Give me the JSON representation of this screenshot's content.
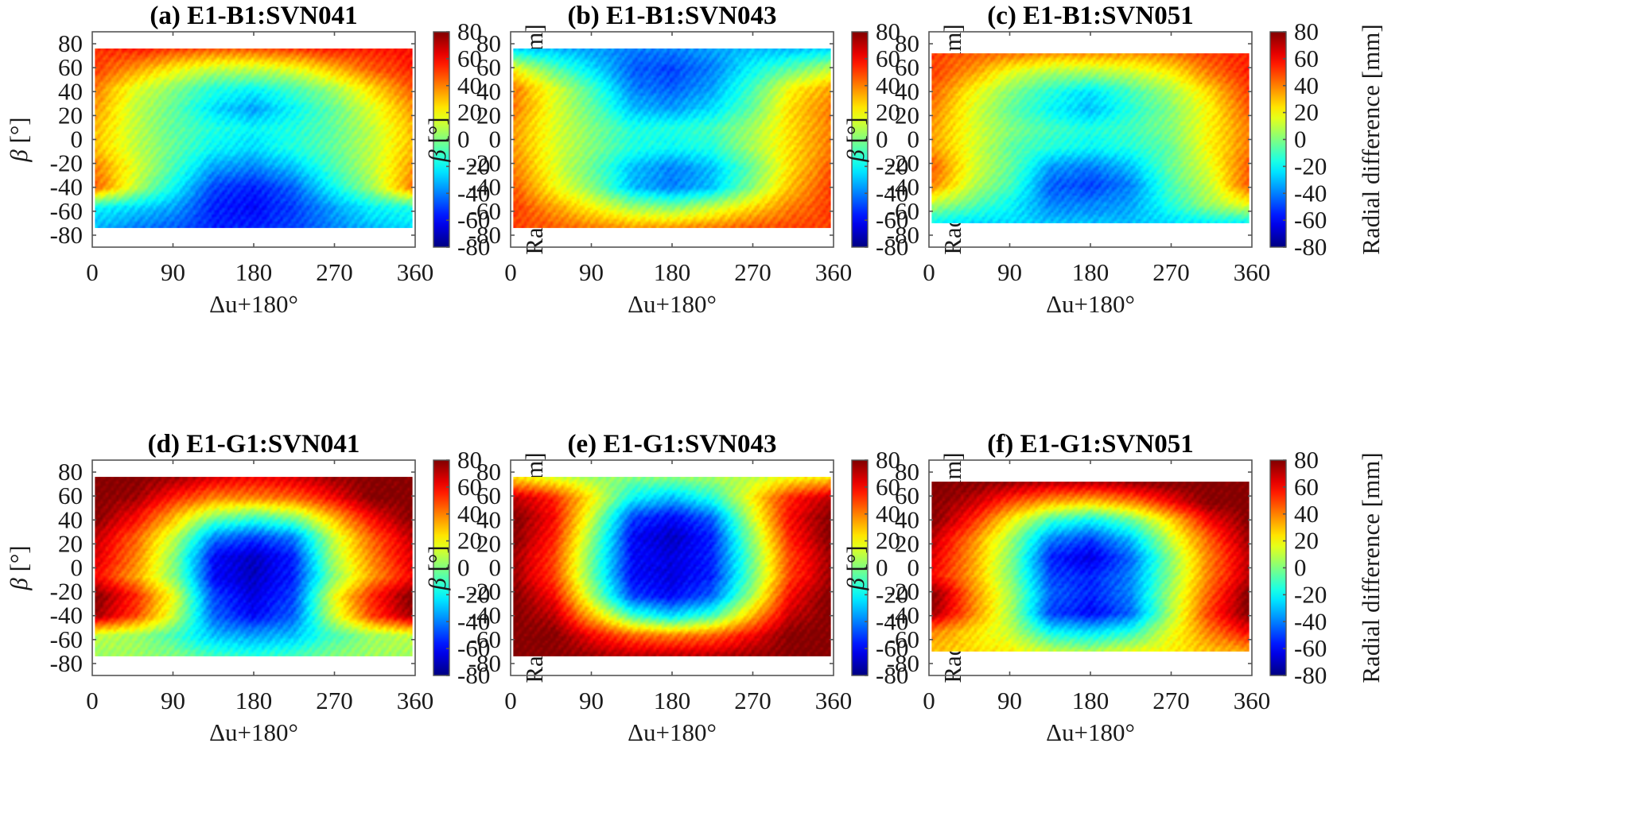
{
  "figure": {
    "description": "Maps of radial orbit differences versus sun elevation angle beta and argument of latitude offset"
  },
  "chart_data": {
    "type": "heatmap",
    "layout": "2 rows x 3 columns, each panel with its own colorbar on the right",
    "shared": {
      "xlabel": "Δu+180°",
      "ylabel": "β [°]",
      "xlim": [
        0,
        360
      ],
      "ylim": [
        -90,
        90
      ],
      "xticks": [
        0,
        90,
        180,
        270,
        360
      ],
      "yticks": [
        -80,
        -60,
        -40,
        -20,
        0,
        20,
        40,
        60,
        80
      ],
      "colorbar_label": "Radial difference [mm]",
      "clim": [
        -80,
        80
      ],
      "colorbar_ticks": [
        -80,
        -60,
        -40,
        -20,
        0,
        20,
        40,
        60,
        80
      ],
      "colormap": "jet"
    },
    "panels": [
      {
        "id": "a",
        "title": "(a) E1-B1:SVN041",
        "beta_range": [
          -74,
          76
        ],
        "pattern": "warm (+40..+60) at top and sides, cool cyan/blue in middle, deepest blue (-60) near u=180 beta=-50, blue strip at bottom",
        "grid": [
          [
            52,
            55,
            50,
            45,
            45,
            50,
            55,
            55,
            58
          ],
          [
            50,
            35,
            20,
            10,
            10,
            15,
            30,
            45,
            55
          ],
          [
            40,
            15,
            0,
            -15,
            -20,
            -10,
            5,
            25,
            45
          ],
          [
            35,
            10,
            -5,
            -25,
            -35,
            -20,
            -5,
            15,
            35
          ],
          [
            30,
            10,
            -5,
            -15,
            -20,
            -15,
            -5,
            10,
            30
          ],
          [
            30,
            10,
            -5,
            -20,
            -25,
            -15,
            -5,
            10,
            30
          ],
          [
            40,
            15,
            -10,
            -35,
            -40,
            -30,
            -10,
            10,
            35
          ],
          [
            45,
            10,
            -20,
            -50,
            -55,
            -45,
            -20,
            5,
            40
          ],
          [
            -20,
            -25,
            -35,
            -55,
            -60,
            -50,
            -35,
            -20,
            -15
          ],
          [
            -30,
            -40,
            -45,
            -55,
            -55,
            -50,
            -40,
            -30,
            -25
          ]
        ]
      },
      {
        "id": "b",
        "title": "(b) E1-B1:SVN043",
        "beta_range": [
          -74,
          76
        ],
        "pattern": "cyan/blue top strip, warm (+40..+50) on left and right sides, blue (-40..-50) in center column, warm bottom edge",
        "grid": [
          [
            -25,
            -30,
            -35,
            -40,
            -40,
            -35,
            -30,
            -30,
            -25
          ],
          [
            20,
            -5,
            -25,
            -45,
            -50,
            -40,
            -20,
            -5,
            10
          ],
          [
            40,
            15,
            -10,
            -40,
            -45,
            -35,
            -10,
            20,
            35
          ],
          [
            40,
            15,
            -5,
            -30,
            -35,
            -25,
            -5,
            25,
            40
          ],
          [
            35,
            15,
            0,
            -15,
            -15,
            -10,
            5,
            25,
            40
          ],
          [
            35,
            15,
            0,
            -15,
            -20,
            -15,
            5,
            25,
            40
          ],
          [
            40,
            15,
            -5,
            -30,
            -40,
            -30,
            -5,
            25,
            45
          ],
          [
            45,
            20,
            0,
            -30,
            -40,
            -30,
            0,
            30,
            50
          ],
          [
            50,
            35,
            20,
            5,
            0,
            10,
            25,
            40,
            50
          ],
          [
            50,
            45,
            40,
            35,
            35,
            40,
            45,
            50,
            50
          ]
        ]
      },
      {
        "id": "c",
        "title": "(c) E1-B1:SVN051",
        "beta_range": [
          -70,
          72
        ],
        "pattern": "warm top and sides, green/cyan interior, blue center near u=180 beta=-40 and beta=30, cyan bottom strip",
        "grid": [
          [
            50,
            45,
            40,
            35,
            35,
            35,
            40,
            50,
            55
          ],
          [
            50,
            35,
            15,
            5,
            5,
            10,
            20,
            40,
            55
          ],
          [
            45,
            20,
            0,
            -15,
            -25,
            -10,
            5,
            25,
            50
          ],
          [
            40,
            15,
            -5,
            -20,
            -30,
            -15,
            0,
            20,
            45
          ],
          [
            35,
            15,
            0,
            -10,
            -15,
            -10,
            0,
            20,
            40
          ],
          [
            35,
            15,
            -5,
            -15,
            -20,
            -15,
            -5,
            20,
            40
          ],
          [
            45,
            15,
            -5,
            -35,
            -40,
            -30,
            -5,
            15,
            45
          ],
          [
            40,
            10,
            -10,
            -45,
            -50,
            -40,
            -10,
            10,
            45
          ],
          [
            10,
            -5,
            -20,
            -40,
            -40,
            -35,
            -15,
            5,
            20
          ],
          [
            -20,
            -25,
            -25,
            -30,
            -30,
            -30,
            -25,
            -20,
            -20
          ]
        ]
      },
      {
        "id": "d",
        "title": "(d) E1-G1:SVN041",
        "beta_range": [
          -74,
          76
        ],
        "pattern": "saturated dark red (+80) at corners/sides, arch of red-yellow, deep blue column (-60..-70) centered u=180, cyan/green bottom",
        "grid": [
          [
            80,
            80,
            75,
            65,
            60,
            65,
            75,
            80,
            80
          ],
          [
            80,
            75,
            55,
            40,
            40,
            45,
            60,
            80,
            80
          ],
          [
            80,
            60,
            30,
            0,
            -10,
            0,
            30,
            60,
            80
          ],
          [
            70,
            45,
            10,
            -40,
            -50,
            -40,
            10,
            45,
            70
          ],
          [
            65,
            40,
            0,
            -60,
            -70,
            -55,
            5,
            40,
            65
          ],
          [
            60,
            35,
            0,
            -60,
            -70,
            -55,
            0,
            35,
            60
          ],
          [
            80,
            55,
            15,
            -50,
            -65,
            -50,
            15,
            55,
            80
          ],
          [
            75,
            50,
            10,
            -45,
            -60,
            -45,
            10,
            50,
            75
          ],
          [
            10,
            5,
            -10,
            -30,
            -35,
            -30,
            -10,
            5,
            10
          ],
          [
            5,
            5,
            0,
            -10,
            -15,
            -10,
            0,
            5,
            5
          ]
        ]
      },
      {
        "id": "e",
        "title": "(e) E1-G1:SVN043",
        "beta_range": [
          -74,
          76
        ],
        "pattern": "yellow/green top strip, dark red (+80) on left and right, deep blue ellipse (-60..-70) centered u=180 beta=0, dark red bottom",
        "grid": [
          [
            25,
            15,
            5,
            0,
            0,
            5,
            10,
            20,
            25
          ],
          [
            70,
            55,
            20,
            -20,
            -30,
            -15,
            20,
            55,
            70
          ],
          [
            80,
            60,
            10,
            -50,
            -60,
            -45,
            10,
            60,
            80
          ],
          [
            80,
            55,
            0,
            -60,
            -70,
            -55,
            0,
            55,
            80
          ],
          [
            75,
            50,
            -5,
            -60,
            -65,
            -55,
            -5,
            50,
            75
          ],
          [
            75,
            50,
            -5,
            -60,
            -65,
            -55,
            -5,
            50,
            75
          ],
          [
            80,
            60,
            5,
            -50,
            -60,
            -45,
            5,
            60,
            80
          ],
          [
            80,
            70,
            30,
            -10,
            -25,
            -10,
            30,
            70,
            80
          ],
          [
            80,
            80,
            60,
            45,
            40,
            45,
            60,
            80,
            80
          ],
          [
            80,
            80,
            75,
            70,
            70,
            70,
            75,
            80,
            80
          ]
        ]
      },
      {
        "id": "f",
        "title": "(f) E1-G1:SVN051",
        "beta_range": [
          -70,
          72
        ],
        "pattern": "dark red (+80) top and sides, arch red-yellow, blue core (-60..-70) near u=180 beta=0 and beta=-40, yellow/green bottom",
        "grid": [
          [
            80,
            80,
            75,
            70,
            70,
            75,
            80,
            80,
            80
          ],
          [
            80,
            70,
            50,
            35,
            30,
            40,
            60,
            80,
            80
          ],
          [
            80,
            55,
            20,
            -10,
            -20,
            -5,
            25,
            60,
            80
          ],
          [
            70,
            40,
            5,
            -40,
            -50,
            -30,
            10,
            45,
            75
          ],
          [
            65,
            35,
            0,
            -55,
            -65,
            -45,
            0,
            40,
            70
          ],
          [
            60,
            35,
            0,
            -50,
            -55,
            -40,
            0,
            40,
            70
          ],
          [
            80,
            40,
            5,
            -45,
            -55,
            -40,
            5,
            45,
            80
          ],
          [
            75,
            40,
            5,
            -50,
            -60,
            -45,
            5,
            50,
            80
          ],
          [
            40,
            25,
            10,
            -20,
            -25,
            -15,
            15,
            40,
            60
          ],
          [
            30,
            25,
            20,
            10,
            5,
            15,
            20,
            30,
            35
          ]
        ]
      }
    ],
    "grid_axes": {
      "u_centers": [
        0,
        45,
        90,
        135,
        180,
        225,
        270,
        315,
        360
      ],
      "beta_rows_top_to_bottom_fraction": [
        0,
        0.11,
        0.22,
        0.33,
        0.44,
        0.56,
        0.67,
        0.78,
        0.89,
        1
      ]
    }
  }
}
